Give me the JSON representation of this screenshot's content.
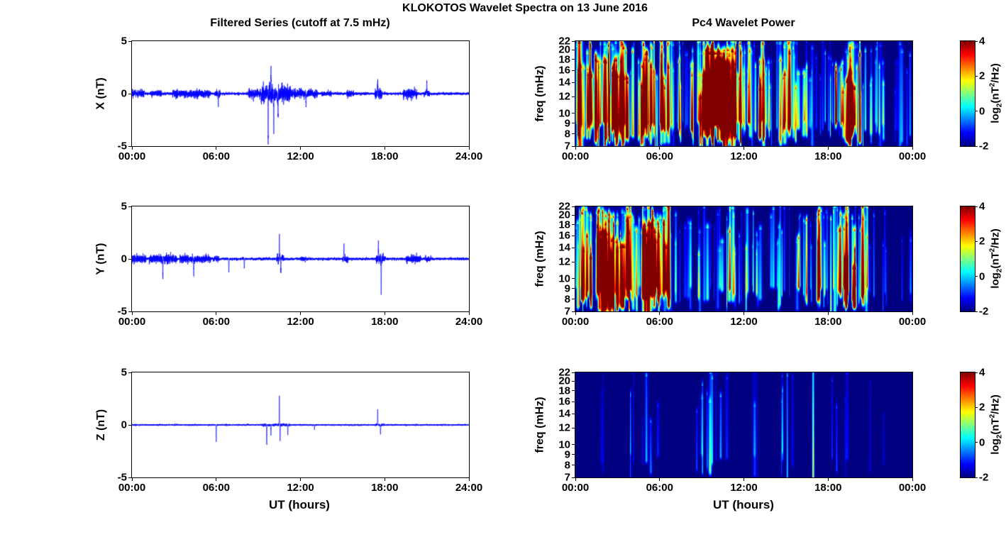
{
  "figure": {
    "title": "KLOKOTOS Wavelet Spectra on 13 June 2016",
    "left_title": "Filtered Series (cutoff at 7.5 mHz)",
    "right_title": "Pc4 Wavelet Power",
    "xlabel": "UT (hours)",
    "cb_label": {
      "pre": "log",
      "sub": "2",
      "mid": "(nT",
      "sup": "2",
      "post": "/Hz)"
    }
  },
  "chart_data": [
    {
      "id": "x-series",
      "type": "line",
      "name": "X filtered series",
      "ylabel": "X (nT)",
      "ylim": [
        -5,
        5
      ],
      "yticks": [
        5,
        0,
        -5
      ],
      "xlim": [
        0,
        24
      ],
      "xticks_hours": [
        0,
        6,
        12,
        18,
        24
      ],
      "xtick_labels": [
        "00:00",
        "06:00",
        "12:00",
        "18:00",
        "24:00"
      ],
      "color": "#0000ff",
      "noise_base": 0.12,
      "envelopes": [
        [
          0,
          0.9,
          0.35
        ],
        [
          1.3,
          2.1,
          0.3
        ],
        [
          2.9,
          5.6,
          0.35
        ],
        [
          5.9,
          6.3,
          0.3
        ],
        [
          8.3,
          9.2,
          0.4
        ],
        [
          9.2,
          11.3,
          0.8
        ],
        [
          11.3,
          13.2,
          0.4
        ],
        [
          13.5,
          14.2,
          0.25
        ],
        [
          15.3,
          15.8,
          0.3
        ],
        [
          17.3,
          17.8,
          0.45
        ],
        [
          19.3,
          20.3,
          0.45
        ],
        [
          20.8,
          21.2,
          0.3
        ]
      ],
      "spikes": [
        [
          9.7,
          -4.6
        ],
        [
          9.9,
          2.3
        ],
        [
          10.1,
          -2.8
        ],
        [
          10.4,
          -2.2
        ],
        [
          6.15,
          -1.2
        ],
        [
          12.4,
          -1.3
        ],
        [
          17.5,
          1.4
        ],
        [
          21.0,
          1.2
        ]
      ]
    },
    {
      "id": "x-wavelet",
      "type": "heatmap",
      "name": "X Pc4 wavelet power",
      "ylabel": "freq (mHz)",
      "flim": [
        7,
        22
      ],
      "yticks": [
        22,
        20,
        18,
        16,
        14,
        12,
        10,
        9,
        8,
        7
      ],
      "xlim": [
        0,
        24
      ],
      "xticks_hours": [
        0,
        6,
        12,
        18,
        24
      ],
      "xtick_labels": [
        "00:00",
        "06:00",
        "12:00",
        "18:00",
        "00:00"
      ],
      "clim": [
        -2,
        4
      ],
      "colorbar_ticks": [
        4,
        2,
        0,
        -2
      ],
      "windows": [
        [
          0,
          6.6,
          110,
          -0.5,
          4
        ],
        [
          6.6,
          8.6,
          20,
          -1,
          1.5
        ],
        [
          8.7,
          11.9,
          60,
          0,
          4
        ],
        [
          11.9,
          14.5,
          30,
          -0.8,
          2.5
        ],
        [
          14.5,
          16.6,
          22,
          -0.8,
          2.2
        ],
        [
          16.6,
          18.4,
          12,
          -1,
          1.2
        ],
        [
          18.5,
          20.4,
          30,
          -0.5,
          3.8
        ],
        [
          20.4,
          22.5,
          12,
          -1,
          1.0
        ],
        [
          22.5,
          24,
          6,
          -1.2,
          0.5
        ]
      ],
      "events": [
        [
          9.9,
          0.5,
          9,
          19,
          3.6
        ],
        [
          10.35,
          0.35,
          10,
          17,
          3.0
        ],
        [
          9.35,
          0.3,
          8,
          15,
          3.2
        ],
        [
          0.3,
          0.15,
          7,
          22,
          3.5
        ],
        [
          19.4,
          0.12,
          7.5,
          14,
          3.8
        ],
        [
          19.7,
          0.1,
          8,
          13,
          3.5
        ]
      ]
    },
    {
      "id": "y-series",
      "type": "line",
      "name": "Y filtered series",
      "ylabel": "Y (nT)",
      "ylim": [
        -5,
        5
      ],
      "yticks": [
        5,
        0,
        -5
      ],
      "xlim": [
        0,
        24
      ],
      "xticks_hours": [
        0,
        6,
        12,
        18,
        24
      ],
      "xtick_labels": [
        "00:00",
        "06:00",
        "12:00",
        "18:00",
        "24:00"
      ],
      "color": "#0000ff",
      "noise_base": 0.12,
      "envelopes": [
        [
          0,
          1.0,
          0.35
        ],
        [
          1.2,
          3.2,
          0.4
        ],
        [
          3.4,
          5.6,
          0.35
        ],
        [
          5.8,
          6.2,
          0.25
        ],
        [
          10.3,
          10.8,
          0.4
        ],
        [
          12.0,
          12.4,
          0.2
        ],
        [
          15.0,
          15.4,
          0.3
        ],
        [
          17.4,
          18.0,
          0.4
        ],
        [
          19.5,
          20.6,
          0.35
        ],
        [
          20.9,
          21.3,
          0.25
        ]
      ],
      "spikes": [
        [
          2.2,
          -1.6
        ],
        [
          4.4,
          -1.5
        ],
        [
          6.9,
          -1.3
        ],
        [
          10.5,
          2.1
        ],
        [
          10.6,
          -1.2
        ],
        [
          15.1,
          1.5
        ],
        [
          17.55,
          1.6
        ],
        [
          17.75,
          -3.1
        ],
        [
          8.0,
          -0.9
        ]
      ]
    },
    {
      "id": "y-wavelet",
      "type": "heatmap",
      "name": "Y Pc4 wavelet power",
      "ylabel": "freq (mHz)",
      "flim": [
        7,
        22
      ],
      "yticks": [
        22,
        20,
        18,
        16,
        14,
        12,
        10,
        9,
        8,
        7
      ],
      "xlim": [
        0,
        24
      ],
      "xticks_hours": [
        0,
        6,
        12,
        18,
        24
      ],
      "xtick_labels": [
        "00:00",
        "06:00",
        "12:00",
        "18:00",
        "00:00"
      ],
      "clim": [
        -2,
        4
      ],
      "colorbar_ticks": [
        4,
        2,
        0,
        -2
      ],
      "windows": [
        [
          0,
          6.7,
          120,
          -0.5,
          4
        ],
        [
          6.7,
          9.3,
          12,
          -1.2,
          0.8
        ],
        [
          9.3,
          11.6,
          16,
          -1,
          1.5
        ],
        [
          11.6,
          14.4,
          14,
          -1,
          1.2
        ],
        [
          14.4,
          16.4,
          12,
          -1,
          1.5
        ],
        [
          16.4,
          18.3,
          18,
          -0.8,
          2.0
        ],
        [
          18.4,
          20.9,
          26,
          -0.5,
          3.5
        ],
        [
          20.9,
          24,
          8,
          -1.4,
          0.2
        ]
      ],
      "events": [
        [
          2.0,
          0.2,
          7,
          16,
          3.8
        ],
        [
          3.3,
          0.15,
          7.5,
          14,
          3.6
        ],
        [
          5.2,
          0.15,
          7,
          13,
          3.5
        ],
        [
          19.3,
          0.1,
          8,
          12,
          3.2
        ],
        [
          19.9,
          0.1,
          7.5,
          11,
          3.0
        ],
        [
          17.3,
          0.08,
          8,
          20,
          2.0
        ]
      ]
    },
    {
      "id": "z-series",
      "type": "line",
      "name": "Z filtered series",
      "ylabel": "Z (nT)",
      "ylim": [
        -5,
        5
      ],
      "yticks": [
        5,
        0,
        -5
      ],
      "xlim": [
        0,
        24
      ],
      "xticks_hours": [
        0,
        6,
        12,
        18,
        24
      ],
      "xtick_labels": [
        "00:00",
        "06:00",
        "12:00",
        "18:00",
        "24:00"
      ],
      "color": "#0000ff",
      "noise_base": 0.07,
      "envelopes": [
        [
          9.3,
          11.3,
          0.12
        ],
        [
          17.3,
          18.0,
          0.12
        ]
      ],
      "spikes": [
        [
          6.0,
          -1.6
        ],
        [
          9.6,
          -1.9
        ],
        [
          9.9,
          -0.9
        ],
        [
          10.5,
          2.8
        ],
        [
          10.55,
          -1.5
        ],
        [
          11.1,
          -1.0
        ],
        [
          13.0,
          -0.5
        ],
        [
          17.5,
          1.5
        ],
        [
          17.7,
          -0.9
        ]
      ]
    },
    {
      "id": "z-wavelet",
      "type": "heatmap",
      "name": "Z Pc4 wavelet power",
      "ylabel": "freq (mHz)",
      "flim": [
        7,
        22
      ],
      "yticks": [
        22,
        20,
        18,
        16,
        14,
        12,
        10,
        9,
        8,
        7
      ],
      "xlim": [
        0,
        24
      ],
      "xticks_hours": [
        0,
        6,
        12,
        18,
        24
      ],
      "xtick_labels": [
        "00:00",
        "06:00",
        "12:00",
        "18:00",
        "00:00"
      ],
      "clim": [
        -2,
        4
      ],
      "colorbar_ticks": [
        4,
        2,
        0,
        -2
      ],
      "windows": [
        [
          1.6,
          2.1,
          3,
          -1.5,
          -0.5
        ],
        [
          3.9,
          6.1,
          7,
          -1.4,
          0.0
        ],
        [
          8.4,
          11.2,
          10,
          -1.3,
          0.6
        ],
        [
          12.6,
          13.2,
          3,
          -1.5,
          -0.7
        ],
        [
          14.4,
          15.6,
          4,
          -1.4,
          -0.4
        ],
        [
          18.0,
          19.6,
          4,
          -1.5,
          -0.6
        ],
        [
          21.0,
          22.0,
          2,
          -1.6,
          -0.9
        ]
      ],
      "events": [
        [
          16.95,
          0.05,
          7,
          22,
          2.2
        ],
        [
          15.1,
          0.04,
          7,
          21,
          0.3
        ]
      ]
    }
  ]
}
